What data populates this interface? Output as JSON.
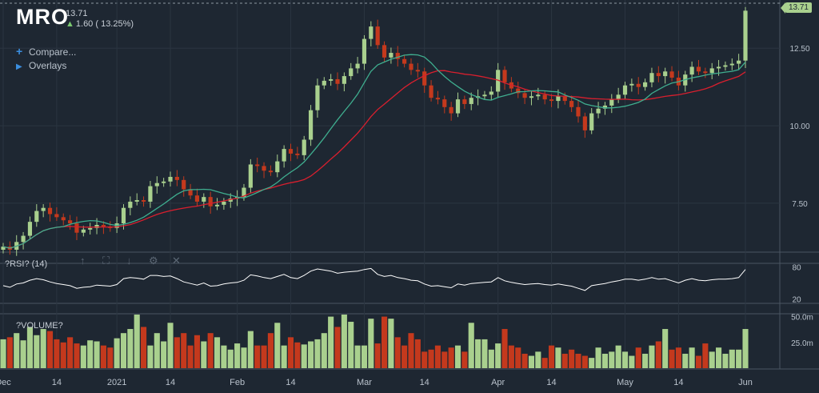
{
  "header": {
    "ticker": "MRO",
    "last_price": "13.71",
    "change": "1.60 ( 13.25%)",
    "compare_label": "Compare...",
    "overlays_label": "Overlays"
  },
  "price_tag": "13.71",
  "rsi_title": "?RSI? (14)",
  "volume_title": "?VOLUME?",
  "colors": {
    "up": "#a9d08e",
    "down": "#c4391d",
    "ma_fast": "#3fae8f",
    "ma_slow": "#d91f2e",
    "rsi": "#ffffff"
  },
  "chart_data": {
    "type": "candlestick",
    "x_axis_labels": [
      {
        "label": "Dec",
        "index": 0
      },
      {
        "label": "14",
        "index": 8
      },
      {
        "label": "2021",
        "index": 17
      },
      {
        "label": "14",
        "index": 25
      },
      {
        "label": "Feb",
        "index": 35
      },
      {
        "label": "14",
        "index": 43
      },
      {
        "label": "Mar",
        "index": 54
      },
      {
        "label": "14",
        "index": 63
      },
      {
        "label": "Apr",
        "index": 74
      },
      {
        "label": "14",
        "index": 82
      },
      {
        "label": "May",
        "index": 93
      },
      {
        "label": "14",
        "index": 101
      },
      {
        "label": "Jun",
        "index": 111
      }
    ],
    "price_axis": {
      "ticks": [
        7.5,
        10,
        12.5
      ],
      "tick_labels": [
        "7.50",
        "10.00",
        "12.50"
      ],
      "range": [
        6.0,
        13.9
      ]
    },
    "rsi_axis": {
      "ticks": [
        20,
        80
      ],
      "tick_labels": [
        "20",
        "80"
      ],
      "range": [
        15,
        85
      ]
    },
    "volume_axis": {
      "ticks": [
        25000000,
        50000000
      ],
      "tick_labels": [
        "25.0m",
        "50.0m"
      ],
      "range": [
        0,
        52000000
      ]
    },
    "close": [
      6.1,
      6.0,
      6.25,
      6.45,
      6.9,
      7.25,
      7.35,
      7.15,
      7.05,
      6.95,
      6.85,
      6.55,
      6.65,
      6.7,
      6.8,
      6.75,
      6.7,
      6.85,
      7.35,
      7.55,
      7.6,
      7.55,
      8.05,
      8.15,
      8.2,
      8.35,
      8.25,
      7.95,
      7.75,
      7.55,
      7.7,
      7.4,
      7.45,
      7.55,
      7.65,
      7.7,
      8.0,
      8.75,
      8.7,
      8.55,
      8.5,
      8.85,
      9.25,
      9.1,
      9.05,
      9.55,
      10.5,
      11.3,
      11.45,
      11.5,
      11.35,
      11.6,
      11.85,
      12.0,
      12.8,
      13.2,
      12.6,
      12.2,
      12.35,
      12.15,
      12.0,
      11.8,
      11.75,
      11.3,
      10.9,
      10.85,
      10.6,
      10.4,
      10.85,
      10.7,
      10.9,
      10.95,
      11.0,
      11.1,
      11.8,
      11.4,
      11.2,
      11.05,
      10.9,
      10.95,
      11.0,
      10.85,
      10.8,
      10.95,
      10.8,
      10.6,
      10.3,
      9.85,
      10.4,
      10.55,
      10.65,
      10.85,
      11.0,
      11.3,
      11.35,
      11.25,
      11.4,
      11.7,
      11.6,
      11.75,
      11.55,
      11.3,
      11.65,
      11.9,
      11.75,
      11.7,
      11.85,
      11.9,
      11.95,
      12.0,
      12.1,
      13.71
    ],
    "ma_fast_approx": "10-period moving average",
    "ma_slow_approx": "20-period moving average",
    "rsi": [
      45,
      42,
      48,
      50,
      55,
      58,
      56,
      52,
      49,
      47,
      45,
      40,
      42,
      43,
      46,
      45,
      44,
      47,
      58,
      60,
      59,
      57,
      64,
      64,
      62,
      63,
      58,
      52,
      49,
      46,
      50,
      44,
      45,
      48,
      50,
      51,
      55,
      65,
      63,
      60,
      58,
      62,
      66,
      60,
      58,
      64,
      72,
      76,
      74,
      72,
      68,
      70,
      71,
      72,
      75,
      77,
      66,
      62,
      64,
      60,
      58,
      55,
      54,
      48,
      44,
      45,
      43,
      41,
      48,
      46,
      49,
      50,
      51,
      52,
      60,
      54,
      51,
      49,
      47,
      48,
      49,
      47,
      46,
      48,
      46,
      44,
      40,
      36,
      45,
      47,
      49,
      52,
      54,
      57,
      57,
      55,
      57,
      60,
      57,
      58,
      54,
      50,
      55,
      58,
      55,
      54,
      56,
      57,
      57,
      58,
      60,
      75
    ],
    "volume": [
      28,
      30,
      34,
      27,
      40,
      32,
      38,
      36,
      28,
      25,
      30,
      24,
      22,
      27,
      26,
      22,
      20,
      29,
      34,
      38,
      52,
      40,
      22,
      34,
      26,
      44,
      30,
      34,
      22,
      32,
      26,
      34,
      30,
      22,
      18,
      24,
      20,
      36,
      22,
      22,
      34,
      44,
      22,
      30,
      25,
      23,
      26,
      28,
      34,
      50,
      40,
      52,
      45,
      22,
      22,
      48,
      24,
      50,
      48,
      30,
      22,
      34,
      28,
      16,
      18,
      22,
      16,
      20,
      22,
      16,
      44,
      28,
      28,
      18,
      24,
      38,
      22,
      20,
      14,
      12,
      16,
      10,
      22,
      20,
      14,
      18,
      14,
      12,
      10,
      20,
      14,
      16,
      22,
      16,
      12,
      20,
      14,
      22,
      26,
      38,
      18,
      20,
      14,
      20,
      12,
      24,
      16,
      20,
      14,
      18,
      18,
      38
    ]
  }
}
